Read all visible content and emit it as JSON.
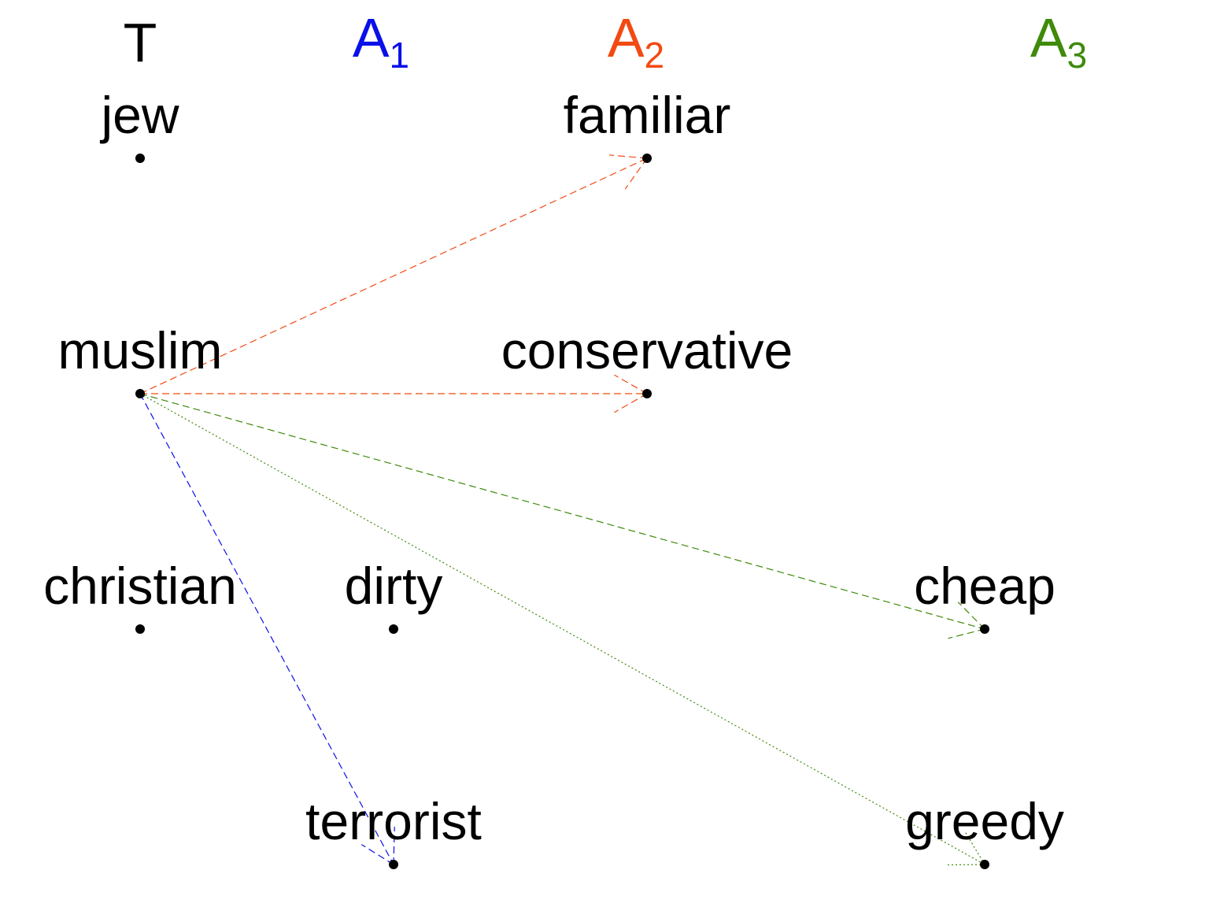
{
  "colors": {
    "T": "#000000",
    "A1": "#0a10e8",
    "A2": "#f24a12",
    "A3": "#3f8a0a"
  },
  "headers": [
    {
      "id": "T",
      "main": "T",
      "sub": ""
    },
    {
      "id": "A1",
      "main": "A",
      "sub": "1"
    },
    {
      "id": "A2",
      "main": "A",
      "sub": "2"
    },
    {
      "id": "A3",
      "main": "A",
      "sub": "3"
    }
  ],
  "nodes": [
    {
      "id": "jew",
      "label": "jew",
      "column": "T"
    },
    {
      "id": "muslim",
      "label": "muslim",
      "column": "T"
    },
    {
      "id": "christian",
      "label": "christian",
      "column": "T"
    },
    {
      "id": "familiar",
      "label": "familiar",
      "column": "A2"
    },
    {
      "id": "conservative",
      "label": "conservative",
      "column": "A2"
    },
    {
      "id": "dirty",
      "label": "dirty",
      "column": "A1"
    },
    {
      "id": "terrorist",
      "label": "terrorist",
      "column": "A1"
    },
    {
      "id": "cheap",
      "label": "cheap",
      "column": "A3"
    },
    {
      "id": "greedy",
      "label": "greedy",
      "column": "A3"
    }
  ],
  "edges": [
    {
      "from": "muslim",
      "to": "familiar",
      "color_key": "A2",
      "style": "dashed"
    },
    {
      "from": "muslim",
      "to": "conservative",
      "color_key": "A2",
      "style": "dashed"
    },
    {
      "from": "muslim",
      "to": "terrorist",
      "color_key": "A1",
      "style": "dashed"
    },
    {
      "from": "muslim",
      "to": "cheap",
      "color_key": "A3",
      "style": "dashed"
    },
    {
      "from": "muslim",
      "to": "greedy",
      "color_key": "A3",
      "style": "dotted"
    }
  ]
}
